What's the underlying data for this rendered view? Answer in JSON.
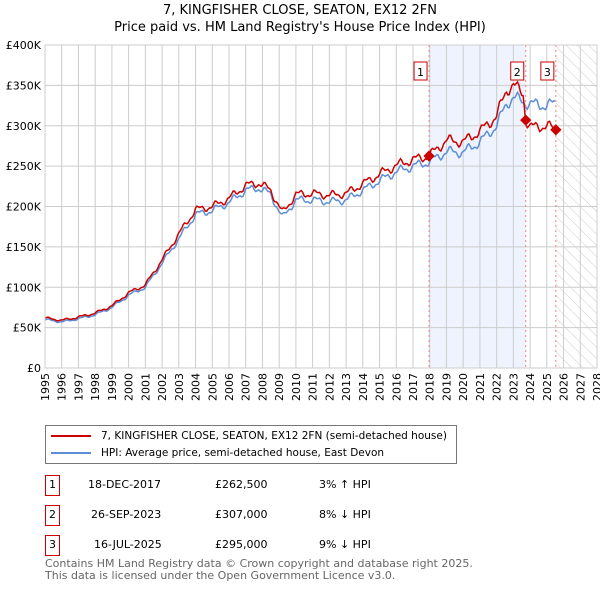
{
  "chart_data": {
    "type": "line",
    "title": "7, KINGFISHER CLOSE, SEATON, EX12 2FN",
    "subtitle": "Price paid vs. HM Land Registry's House Price Index (HPI)",
    "xlim": [
      1995,
      2028
    ],
    "ylim": [
      0,
      400000
    ],
    "xticks": [
      "1995",
      "1996",
      "1997",
      "1998",
      "1999",
      "2000",
      "2001",
      "2002",
      "2003",
      "2004",
      "2005",
      "2006",
      "2007",
      "2008",
      "2009",
      "2010",
      "2011",
      "2012",
      "2013",
      "2014",
      "2015",
      "2016",
      "2017",
      "2018",
      "2019",
      "2020",
      "2021",
      "2022",
      "2023",
      "2024",
      "2025",
      "2026",
      "2027",
      "2028"
    ],
    "yticks": [
      "£0",
      "£50K",
      "£100K",
      "£150K",
      "£200K",
      "£250K",
      "£300K",
      "£350K",
      "£400K"
    ],
    "grid": true,
    "series": [
      {
        "name": "7, KINGFISHER CLOSE, SEATON, EX12 2FN (semi-detached house)",
        "color": "#cc0000",
        "x": [
          1995,
          1996,
          1997,
          1998,
          1999,
          2000,
          2001,
          2002,
          2003,
          2004,
          2005,
          2006,
          2007,
          2007.8,
          2008.5,
          2009.2,
          2010,
          2011,
          2012,
          2013,
          2014,
          2015,
          2016,
          2017,
          2017.96,
          2019,
          2020,
          2021,
          2022,
          2022.6,
          2023,
          2023.6,
          2023.74,
          2024,
          2025,
          2025.54
        ],
        "y": [
          62000,
          59000,
          63000,
          68000,
          77000,
          93000,
          103000,
          134000,
          166000,
          196000,
          200000,
          210000,
          226000,
          229000,
          220000,
          192000,
          215000,
          216000,
          214000,
          216000,
          228000,
          240000,
          251000,
          258000,
          262500,
          282000,
          280000,
          293000,
          312000,
          345000,
          350000,
          340000,
          307000,
          298000,
          300000,
          295000
        ]
      },
      {
        "name": "HPI: Average price, semi-detached house, East Devon",
        "color": "#5b8ed6",
        "x": [
          1995,
          1996,
          1997,
          1998,
          1999,
          2000,
          2001,
          2002,
          2003,
          2004,
          2005,
          2006,
          2007,
          2007.8,
          2008.5,
          2009.2,
          2010,
          2011,
          2012,
          2013,
          2014,
          2015,
          2016,
          2017,
          2017.96,
          2019,
          2020,
          2021,
          2022,
          2022.6,
          2023,
          2023.6,
          2024,
          2025,
          2025.54
        ],
        "y": [
          60000,
          57000,
          61000,
          66000,
          75000,
          90000,
          100000,
          130000,
          160000,
          190000,
          195000,
          205000,
          220000,
          223000,
          215000,
          186000,
          208000,
          208000,
          206000,
          208000,
          220000,
          232000,
          243000,
          250000,
          255000,
          268000,
          267000,
          280000,
          300000,
          328000,
          335000,
          330000,
          327000,
          325000,
          328000
        ]
      }
    ],
    "sales": [
      {
        "label": "1",
        "date": "18-DEC-2017",
        "x": 2017.96,
        "price": "£262,500",
        "value": 262500,
        "hpi": "3% ↑ HPI"
      },
      {
        "label": "2",
        "date": "26-SEP-2023",
        "x": 2023.74,
        "price": "£307,000",
        "value": 307000,
        "hpi": "8% ↓ HPI"
      },
      {
        "label": "3",
        "date": "16-JUL-2025",
        "x": 2025.54,
        "price": "£295,000",
        "value": 295000,
        "hpi": "9% ↓ HPI"
      }
    ],
    "shaded_range": [
      2017.96,
      2023.74
    ],
    "hatched_from": 2025.54
  },
  "footer": {
    "line1": "Contains HM Land Registry data © Crown copyright and database right 2025.",
    "line2": "This data is licensed under the Open Government Licence v3.0."
  }
}
